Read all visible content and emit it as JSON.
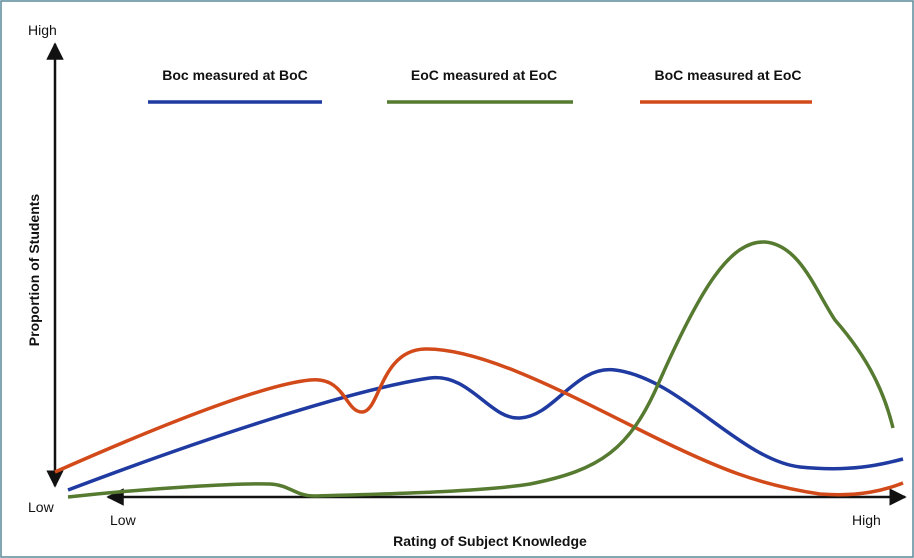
{
  "legend": [
    "Boc measured at BoC",
    "EoC measured at EoC",
    "BoC measured at EoC"
  ],
  "y_axis": {
    "title": "Proportion of  Students",
    "high": "High",
    "low": "Low"
  },
  "x_axis": {
    "title": "Rating of Subject Knowledge",
    "low": "Low",
    "high": "High"
  }
}
